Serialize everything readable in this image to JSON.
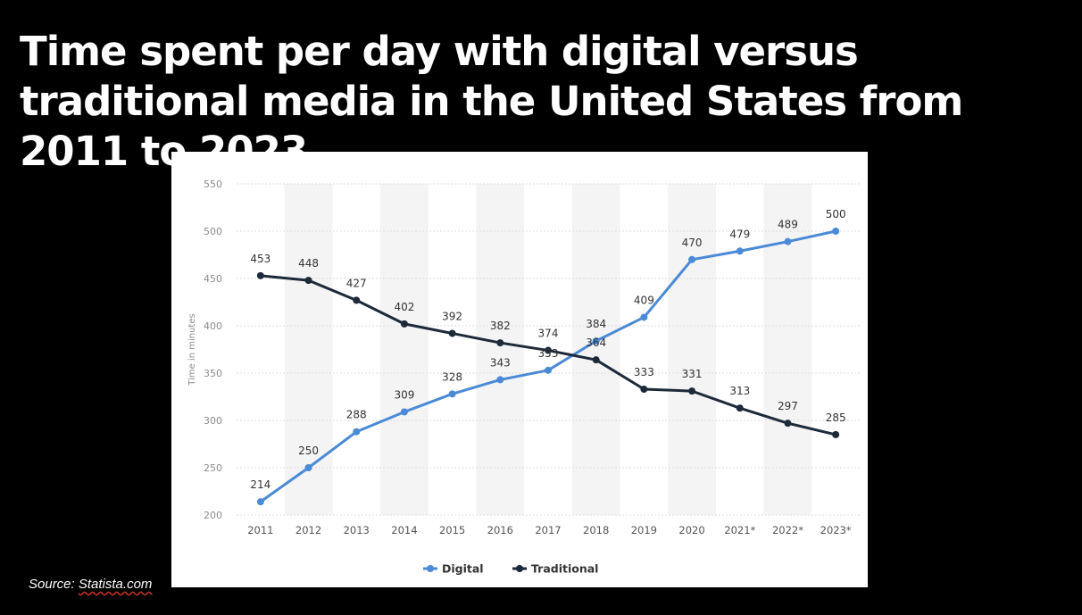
{
  "slide": {
    "title": "Time spent per day with digital versus traditional media in the United States from 2011 to 2023",
    "source_prefix": "Source: ",
    "source_link": "Statista.com"
  },
  "chart_data": {
    "type": "line",
    "categories": [
      "2011",
      "2012",
      "2013",
      "2014",
      "2015",
      "2016",
      "2017",
      "2018",
      "2019",
      "2020",
      "2021*",
      "2022*",
      "2023*"
    ],
    "series": [
      {
        "name": "Digital",
        "color": "#4a8ad6",
        "values": [
          214,
          250,
          288,
          309,
          328,
          343,
          353,
          384,
          409,
          470,
          479,
          489,
          500
        ]
      },
      {
        "name": "Traditional",
        "color": "#1c2a3a",
        "values": [
          453,
          448,
          427,
          402,
          392,
          382,
          374,
          364,
          333,
          331,
          313,
          297,
          285
        ]
      }
    ],
    "ylabel": "Time in minutes",
    "ylim": [
      200,
      550
    ],
    "yticks": [
      200,
      250,
      300,
      350,
      400,
      450,
      500,
      550
    ],
    "grid": true,
    "legend_position": "bottom-center",
    "data_labels": true
  }
}
